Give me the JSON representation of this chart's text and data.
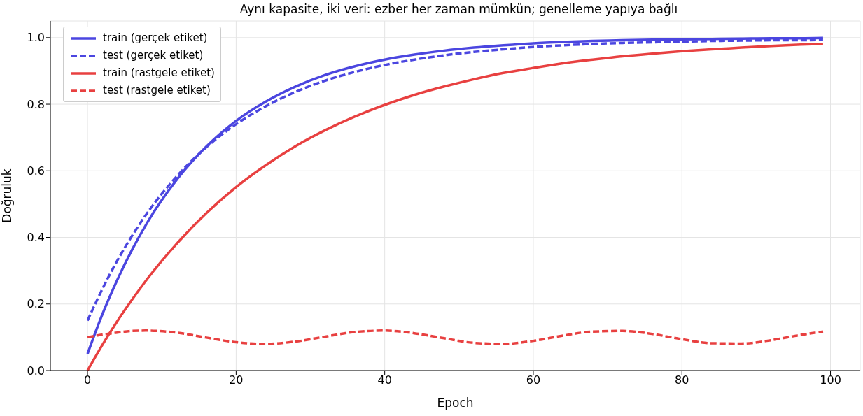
{
  "chart_data": {
    "type": "line",
    "title": "Aynı kapasite, iki veri: ezber her zaman mümkün; genelleme yapıya bağlı",
    "xlabel": "Epoch",
    "ylabel": "Doğruluk",
    "x": [
      0,
      2,
      4,
      6,
      8,
      12,
      16,
      20,
      24,
      28,
      32,
      36,
      40,
      44,
      48,
      52,
      56,
      60,
      64,
      68,
      72,
      76,
      80,
      84,
      88,
      92,
      96,
      99
    ],
    "series": [
      {
        "name": "train (gerçek etiket)",
        "color": "#4b46e0",
        "line_style": "solid",
        "values": [
          0.05,
          0.169,
          0.272,
          0.363,
          0.443,
          0.573,
          0.673,
          0.75,
          0.808,
          0.853,
          0.888,
          0.914,
          0.934,
          0.949,
          0.961,
          0.97,
          0.977,
          0.983,
          0.987,
          0.99,
          0.992,
          0.994,
          0.995,
          0.996,
          0.997,
          0.998,
          0.998,
          0.999
        ]
      },
      {
        "name": "test (gerçek etiket)",
        "color": "#4b46e0",
        "line_style": "dashed",
        "values": [
          0.15,
          0.245,
          0.33,
          0.405,
          0.472,
          0.583,
          0.671,
          0.74,
          0.794,
          0.837,
          0.871,
          0.897,
          0.918,
          0.934,
          0.947,
          0.957,
          0.965,
          0.972,
          0.977,
          0.981,
          0.984,
          0.986,
          0.988,
          0.99,
          0.991,
          0.992,
          0.992,
          0.993
        ]
      },
      {
        "name": "train (rastgele etiket)",
        "color": "#e84040",
        "line_style": "solid",
        "values": [
          0,
          0.077,
          0.148,
          0.213,
          0.274,
          0.381,
          0.473,
          0.551,
          0.617,
          0.674,
          0.722,
          0.763,
          0.798,
          0.828,
          0.853,
          0.875,
          0.894,
          0.909,
          0.923,
          0.934,
          0.944,
          0.952,
          0.959,
          0.965,
          0.97,
          0.975,
          0.979,
          0.981
        ]
      },
      {
        "name": "test (rastgele etiket)",
        "color": "#e84040",
        "line_style": "dashed",
        "values": [
          0.1,
          0.108,
          0.114,
          0.119,
          0.12,
          0.114,
          0.099,
          0.085,
          0.08,
          0.087,
          0.102,
          0.116,
          0.12,
          0.112,
          0.097,
          0.083,
          0.08,
          0.089,
          0.105,
          0.117,
          0.119,
          0.11,
          0.094,
          0.082,
          0.081,
          0.091,
          0.107,
          0.117
        ]
      }
    ],
    "xlim": [
      -5,
      104
    ],
    "xticks": [
      0,
      20,
      40,
      60,
      80,
      100
    ],
    "ylim": [
      0,
      1.05
    ],
    "yticks": [
      {
        "value": 0,
        "label": "0.0"
      },
      {
        "value": 0.2,
        "label": "0.2"
      },
      {
        "value": 0.4,
        "label": "0.4"
      },
      {
        "value": 0.6,
        "label": "0.6"
      },
      {
        "value": 0.8,
        "label": "0.8"
      },
      {
        "value": 1,
        "label": "1.0"
      }
    ],
    "grid": true,
    "legend": "top left",
    "marker": "none"
  }
}
